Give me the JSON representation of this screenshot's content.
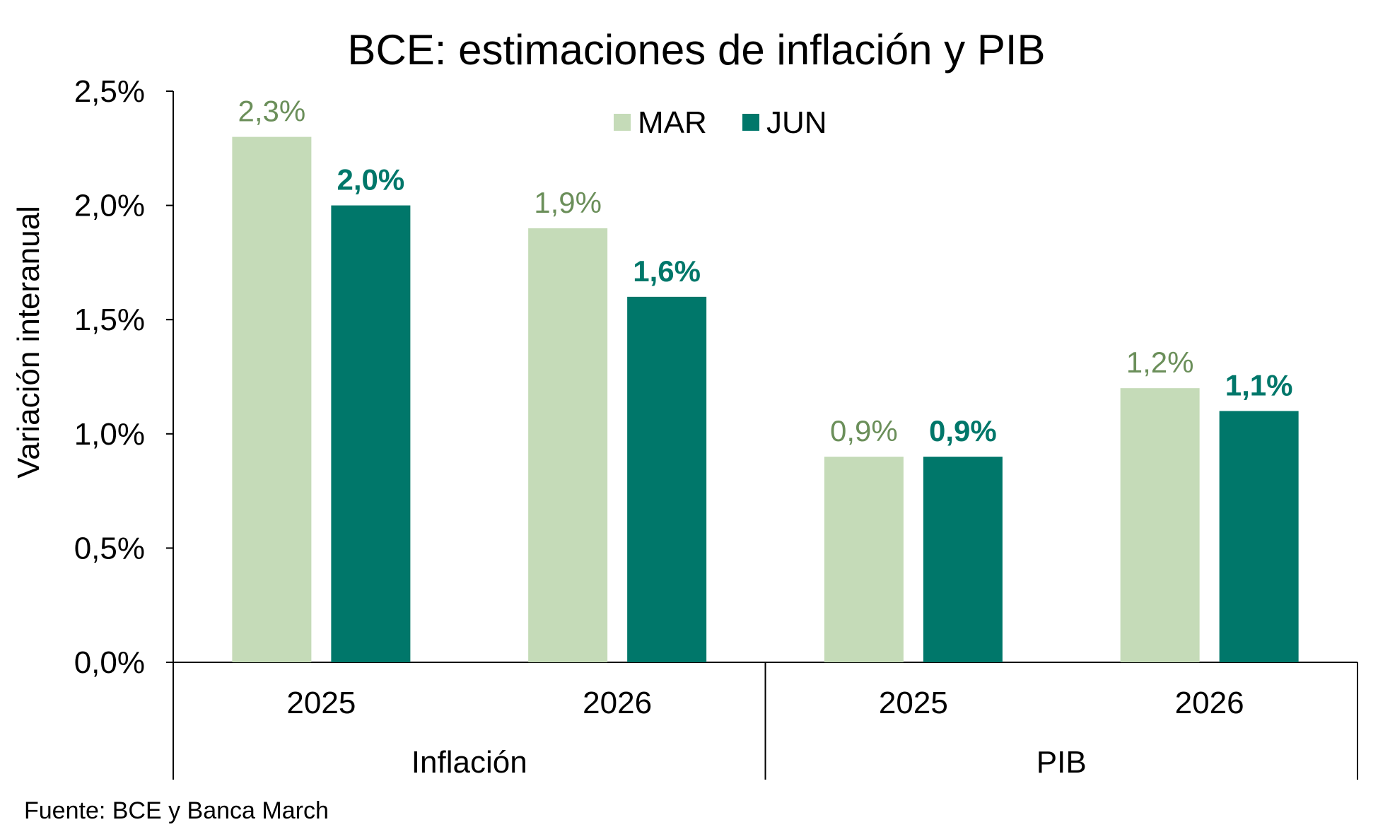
{
  "chart_data": {
    "type": "bar",
    "title": "BCE: estimaciones de inflación y PIB",
    "ylabel": "Variación interanual",
    "xlabel": "",
    "ylim": [
      0,
      2.5
    ],
    "yticks": [
      "0,0%",
      "0,5%",
      "1,0%",
      "1,5%",
      "2,0%",
      "2,5%"
    ],
    "yticks_values": [
      0,
      0.5,
      1.0,
      1.5,
      2.0,
      2.5
    ],
    "groups": [
      {
        "name": "Inflación",
        "categories": [
          "2025",
          "2026"
        ]
      },
      {
        "name": "PIB",
        "categories": [
          "2025",
          "2026"
        ]
      }
    ],
    "categories": [
      "2025",
      "2026",
      "2025",
      "2026"
    ],
    "series": [
      {
        "name": "MAR",
        "color": "#c5dbb8",
        "label_color": "#6b8f5a",
        "values": [
          2.3,
          1.9,
          0.9,
          1.2
        ],
        "labels": [
          "2,3%",
          "1,9%",
          "0,9%",
          "1,2%"
        ]
      },
      {
        "name": "JUN",
        "color": "#00776a",
        "label_color": "#00776a",
        "values": [
          2.0,
          1.6,
          0.9,
          1.1
        ],
        "labels": [
          "2,0%",
          "1,6%",
          "0,9%",
          "1,1%"
        ]
      }
    ],
    "legend_position": "top-center",
    "grid": false
  },
  "source": "Fuente: BCE y Banca March"
}
